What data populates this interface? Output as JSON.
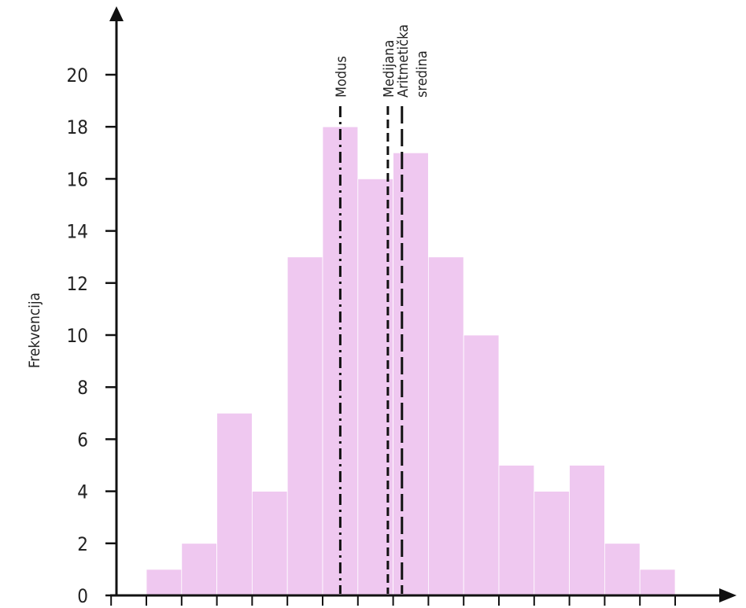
{
  "chart_data": {
    "type": "bar",
    "subtype": "histogram",
    "ylabel": "Frekvencija",
    "xlabel": "",
    "ylim": [
      0,
      20
    ],
    "y_ticks": [
      0,
      2,
      4,
      6,
      8,
      10,
      12,
      14,
      16,
      18,
      20
    ],
    "bins": 15,
    "values": [
      1,
      2,
      7,
      4,
      13,
      18,
      16,
      17,
      13,
      10,
      5,
      4,
      5,
      2,
      1
    ],
    "bar_color": "#efc8f0",
    "bar_edge_color": "#ffffff",
    "markers": [
      {
        "label": "Modus",
        "bin_position": 5.5,
        "style": "dash-dot"
      },
      {
        "label": "Medijana",
        "bin_position": 6.85,
        "style": "dashed"
      },
      {
        "label": "Aritmetička sredina",
        "bin_position": 7.25,
        "style": "long-dash"
      }
    ],
    "grid": false,
    "legend": "none"
  }
}
